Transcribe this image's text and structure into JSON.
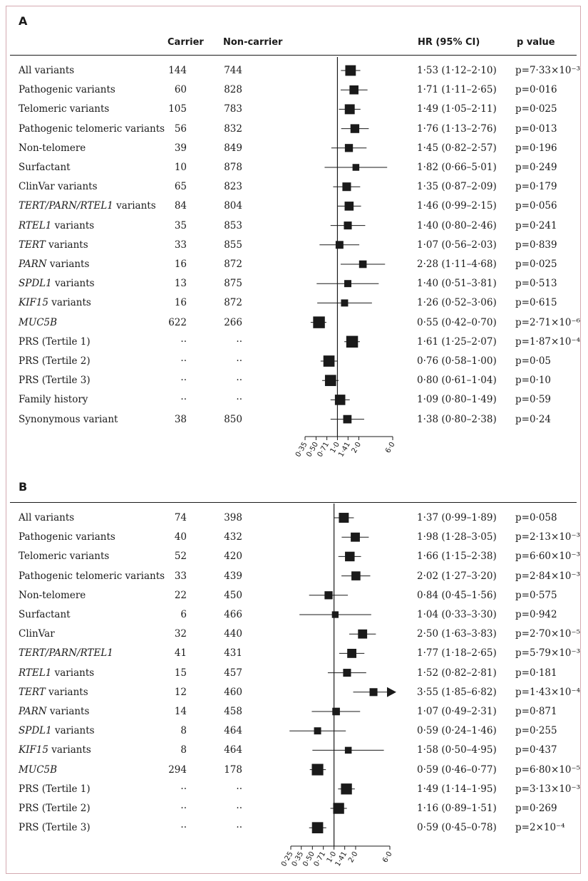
{
  "column_headers": {
    "carrier": "Carrier",
    "non_carrier": "Non-carrier",
    "hr": "HR (95% CI)",
    "p": "p value"
  },
  "chart_data": [
    {
      "type": "forest",
      "panel": "A",
      "x_scale": "log",
      "reference_line": 1.0,
      "xlim": [
        0.35,
        6.0
      ],
      "ticks": [
        "0·35",
        "0·50",
        "0·71",
        "1·0",
        "1·41",
        "2·0",
        "6·0"
      ],
      "tick_values": [
        0.35,
        0.5,
        0.71,
        1.0,
        1.41,
        2.0,
        6.0
      ],
      "rows": [
        {
          "label": "All variants",
          "italic": "",
          "rest": "",
          "carrier": "144",
          "non_carrier": "744",
          "hr": 1.53,
          "lo": 1.12,
          "hi": 2.1,
          "hr_text": "1·53 (1·12–2·10)",
          "p_text": "p=7·33×10⁻³",
          "weight": 0.8
        },
        {
          "label": "Pathogenic variants",
          "italic": "",
          "rest": "",
          "carrier": "60",
          "non_carrier": "828",
          "hr": 1.71,
          "lo": 1.11,
          "hi": 2.65,
          "hr_text": "1·71 (1·11–2·65)",
          "p_text": "p=0·016",
          "weight": 0.6
        },
        {
          "label": "Telomeric variants",
          "italic": "",
          "rest": "",
          "carrier": "105",
          "non_carrier": "783",
          "hr": 1.49,
          "lo": 1.05,
          "hi": 2.11,
          "hr_text": "1·49 (1·05–2·11)",
          "p_text": "p=0·025",
          "weight": 0.72
        },
        {
          "label": "Pathogenic telomeric variants",
          "italic": "",
          "rest": "",
          "carrier": "56",
          "non_carrier": "832",
          "hr": 1.76,
          "lo": 1.13,
          "hi": 2.76,
          "hr_text": "1·76 (1·13–2·76)",
          "p_text": "p=0·013",
          "weight": 0.58
        },
        {
          "label": "Non-telomere",
          "italic": "",
          "rest": "",
          "carrier": "39",
          "non_carrier": "849",
          "hr": 1.45,
          "lo": 0.82,
          "hi": 2.57,
          "hr_text": "1·45 (0·82–2·57)",
          "p_text": "p=0·196",
          "weight": 0.48
        },
        {
          "label": "Surfactant",
          "italic": "",
          "rest": "",
          "carrier": "10",
          "non_carrier": "878",
          "hr": 1.82,
          "lo": 0.66,
          "hi": 5.01,
          "hr_text": "1·82 (0·66–5·01)",
          "p_text": "p=0·249",
          "weight": 0.32
        },
        {
          "label": "ClinVar variants",
          "italic": "",
          "rest": "",
          "carrier": "65",
          "non_carrier": "823",
          "hr": 1.35,
          "lo": 0.87,
          "hi": 2.09,
          "hr_text": "1·35 (0·87–2·09)",
          "p_text": "p=0·179",
          "weight": 0.55
        },
        {
          "label": "",
          "italic": "TERT/PARN/RTEL1",
          "rest": " variants",
          "carrier": "84",
          "non_carrier": "804",
          "hr": 1.46,
          "lo": 0.99,
          "hi": 2.15,
          "hr_text": "1·46 (0·99–2·15)",
          "p_text": "p=0·056",
          "weight": 0.6
        },
        {
          "label": "",
          "italic": "RTEL1",
          "rest": " variants",
          "carrier": "35",
          "non_carrier": "853",
          "hr": 1.4,
          "lo": 0.8,
          "hi": 2.46,
          "hr_text": "1·40 (0·80–2·46)",
          "p_text": "p=0·241",
          "weight": 0.46
        },
        {
          "label": "",
          "italic": "TERT",
          "rest": " variants",
          "carrier": "33",
          "non_carrier": "855",
          "hr": 1.07,
          "lo": 0.56,
          "hi": 2.03,
          "hr_text": "1·07 (0·56–2·03)",
          "p_text": "p=0·839",
          "weight": 0.45
        },
        {
          "label": "",
          "italic": "PARN",
          "rest": " variants",
          "carrier": "16",
          "non_carrier": "872",
          "hr": 2.28,
          "lo": 1.11,
          "hi": 4.68,
          "hr_text": "2·28 (1·11–4·68)",
          "p_text": "p=0·025",
          "weight": 0.42
        },
        {
          "label": "",
          "italic": "SPDL1",
          "rest": " variants",
          "carrier": "13",
          "non_carrier": "875",
          "hr": 1.4,
          "lo": 0.51,
          "hi": 3.81,
          "hr_text": "1·40 (0·51–3·81)",
          "p_text": "p=0·513",
          "weight": 0.36
        },
        {
          "label": "",
          "italic": "KIF15",
          "rest": " variants",
          "carrier": "16",
          "non_carrier": "872",
          "hr": 1.26,
          "lo": 0.52,
          "hi": 3.06,
          "hr_text": "1·26 (0·52–3·06)",
          "p_text": "p=0·615",
          "weight": 0.36
        },
        {
          "label": "",
          "italic": "MUC5B",
          "rest": "",
          "carrier": "622",
          "non_carrier": "266",
          "hr": 0.55,
          "lo": 0.42,
          "hi": 0.7,
          "hr_text": "0·55 (0·42–0·70)",
          "p_text": "p=2·71×10⁻⁶",
          "weight": 0.95
        },
        {
          "label": "PRS (Tertile 1)",
          "italic": "",
          "rest": "",
          "carrier": "··",
          "non_carrier": "··",
          "hr": 1.61,
          "lo": 1.25,
          "hi": 2.07,
          "hr_text": "1·61 (1·25–2·07)",
          "p_text": "p=1·87×10⁻⁴",
          "weight": 0.95
        },
        {
          "label": "PRS (Tertile 2)",
          "italic": "",
          "rest": "",
          "carrier": "··",
          "non_carrier": "··",
          "hr": 0.76,
          "lo": 0.58,
          "hi": 1.0,
          "hr_text": "0·76 (0·58–1·00)",
          "p_text": "p=0·05",
          "weight": 0.88
        },
        {
          "label": "PRS (Tertile 3)",
          "italic": "",
          "rest": "",
          "carrier": "··",
          "non_carrier": "··",
          "hr": 0.8,
          "lo": 0.61,
          "hi": 1.04,
          "hr_text": "0·80 (0·61–1·04)",
          "p_text": "p=0·10",
          "weight": 0.88
        },
        {
          "label": "Family history",
          "italic": "",
          "rest": "",
          "carrier": "··",
          "non_carrier": "··",
          "hr": 1.09,
          "lo": 0.8,
          "hi": 1.49,
          "hr_text": "1·09 (0·80–1·49)",
          "p_text": "p=0·59",
          "weight": 0.78
        },
        {
          "label": "Synonymous variant",
          "italic": "",
          "rest": "",
          "carrier": "38",
          "non_carrier": "850",
          "hr": 1.38,
          "lo": 0.8,
          "hi": 2.38,
          "hr_text": "1·38 (0·80–2·38)",
          "p_text": "p=0·24",
          "weight": 0.52
        }
      ]
    },
    {
      "type": "forest",
      "panel": "B",
      "x_scale": "log",
      "reference_line": 1.0,
      "xlim": [
        0.25,
        6.0
      ],
      "ticks": [
        "0·25",
        "0·35",
        "0·50",
        "0·71",
        "1·0",
        "1·41",
        "2·0",
        "6·0"
      ],
      "tick_values": [
        0.25,
        0.35,
        0.5,
        0.71,
        1.0,
        1.41,
        2.0,
        6.0
      ],
      "rows": [
        {
          "label": "All variants",
          "italic": "",
          "rest": "",
          "carrier": "74",
          "non_carrier": "398",
          "hr": 1.37,
          "lo": 0.99,
          "hi": 1.89,
          "hr_text": "1·37 (0·99–1·89)",
          "p_text": "p=0·058",
          "weight": 0.72
        },
        {
          "label": "Pathogenic variants",
          "italic": "",
          "rest": "",
          "carrier": "40",
          "non_carrier": "432",
          "hr": 1.98,
          "lo": 1.28,
          "hi": 3.05,
          "hr_text": "1·98 (1·28–3·05)",
          "p_text": "p=2·13×10⁻³",
          "weight": 0.62
        },
        {
          "label": "Telomeric variants",
          "italic": "",
          "rest": "",
          "carrier": "52",
          "non_carrier": "420",
          "hr": 1.66,
          "lo": 1.15,
          "hi": 2.38,
          "hr_text": "1·66 (1·15–2·38)",
          "p_text": "p=6·60×10⁻³",
          "weight": 0.68
        },
        {
          "label": "Pathogenic telomeric variants",
          "italic": "",
          "rest": "",
          "carrier": "33",
          "non_carrier": "439",
          "hr": 2.02,
          "lo": 1.27,
          "hi": 3.2,
          "hr_text": "2·02 (1·27–3·20)",
          "p_text": "p=2·84×10⁻³",
          "weight": 0.6
        },
        {
          "label": "Non-telomere",
          "italic": "",
          "rest": "",
          "carrier": "22",
          "non_carrier": "450",
          "hr": 0.84,
          "lo": 0.45,
          "hi": 1.56,
          "hr_text": "0·84 (0·45–1·56)",
          "p_text": "p=0·575",
          "weight": 0.48
        },
        {
          "label": "Surfactant",
          "italic": "",
          "rest": "",
          "carrier": "6",
          "non_carrier": "466",
          "hr": 1.04,
          "lo": 0.33,
          "hi": 3.3,
          "hr_text": "1·04 (0·33–3·30)",
          "p_text": "p=0·942",
          "weight": 0.3
        },
        {
          "label": "ClinVar",
          "italic": "",
          "rest": "",
          "carrier": "32",
          "non_carrier": "440",
          "hr": 2.5,
          "lo": 1.63,
          "hi": 3.83,
          "hr_text": "2·50 (1·63–3·83)",
          "p_text": "p=2·70×10⁻⁵",
          "weight": 0.62
        },
        {
          "label": "",
          "italic": "TERT/PARN/RTEL1",
          "rest": "",
          "carrier": "41",
          "non_carrier": "431",
          "hr": 1.77,
          "lo": 1.18,
          "hi": 2.65,
          "hr_text": "1·77 (1·18–2·65)",
          "p_text": "p=5·79×10⁻³",
          "weight": 0.62
        },
        {
          "label": "",
          "italic": "RTEL1",
          "rest": " variants",
          "carrier": "15",
          "non_carrier": "457",
          "hr": 1.52,
          "lo": 0.82,
          "hi": 2.81,
          "hr_text": "1·52 (0·82–2·81)",
          "p_text": "p=0·181",
          "weight": 0.46
        },
        {
          "label": "",
          "italic": "TERT",
          "rest": " variants",
          "carrier": "12",
          "non_carrier": "460",
          "hr": 3.55,
          "lo": 1.85,
          "hi": 6.82,
          "hr_text": "3·55 (1·85–6·82)",
          "p_text": "p=1·43×10⁻⁴",
          "weight": 0.46,
          "arrow": true
        },
        {
          "label": "",
          "italic": "PARN",
          "rest": " variants",
          "carrier": "14",
          "non_carrier": "458",
          "hr": 1.07,
          "lo": 0.49,
          "hi": 2.31,
          "hr_text": "1·07 (0·49–2·31)",
          "p_text": "p=0·871",
          "weight": 0.42
        },
        {
          "label": "",
          "italic": "SPDL1",
          "rest": " variants",
          "carrier": "8",
          "non_carrier": "464",
          "hr": 0.59,
          "lo": 0.24,
          "hi": 1.46,
          "hr_text": "0·59 (0·24–1·46)",
          "p_text": "p=0·255",
          "weight": 0.36
        },
        {
          "label": "",
          "italic": "KIF15",
          "rest": " variants",
          "carrier": "8",
          "non_carrier": "464",
          "hr": 1.58,
          "lo": 0.5,
          "hi": 4.95,
          "hr_text": "1·58 (0·50–4·95)",
          "p_text": "p=0·437",
          "weight": 0.32
        },
        {
          "label": "",
          "italic": "MUC5B",
          "rest": "",
          "carrier": "294",
          "non_carrier": "178",
          "hr": 0.59,
          "lo": 0.46,
          "hi": 0.77,
          "hr_text": "0·59 (0·46–0·77)",
          "p_text": "p=6·80×10⁻⁵",
          "weight": 0.92
        },
        {
          "label": "PRS (Tertile 1)",
          "italic": "",
          "rest": "",
          "carrier": "··",
          "non_carrier": "··",
          "hr": 1.49,
          "lo": 1.14,
          "hi": 1.95,
          "hr_text": "1·49 (1·14–1·95)",
          "p_text": "p=3·13×10⁻³",
          "weight": 0.85
        },
        {
          "label": "PRS (Tertile 2)",
          "italic": "",
          "rest": "",
          "carrier": "··",
          "non_carrier": "··",
          "hr": 1.16,
          "lo": 0.89,
          "hi": 1.51,
          "hr_text": "1·16 (0·89–1·51)",
          "p_text": "p=0·269",
          "weight": 0.85
        },
        {
          "label": "PRS (Tertile 3)",
          "italic": "",
          "rest": "",
          "carrier": "··",
          "non_carrier": "··",
          "hr": 0.59,
          "lo": 0.45,
          "hi": 0.78,
          "hr_text": "0·59 (0·45–0·78)",
          "p_text": "p=2×10⁻⁴",
          "weight": 0.88
        }
      ]
    }
  ]
}
